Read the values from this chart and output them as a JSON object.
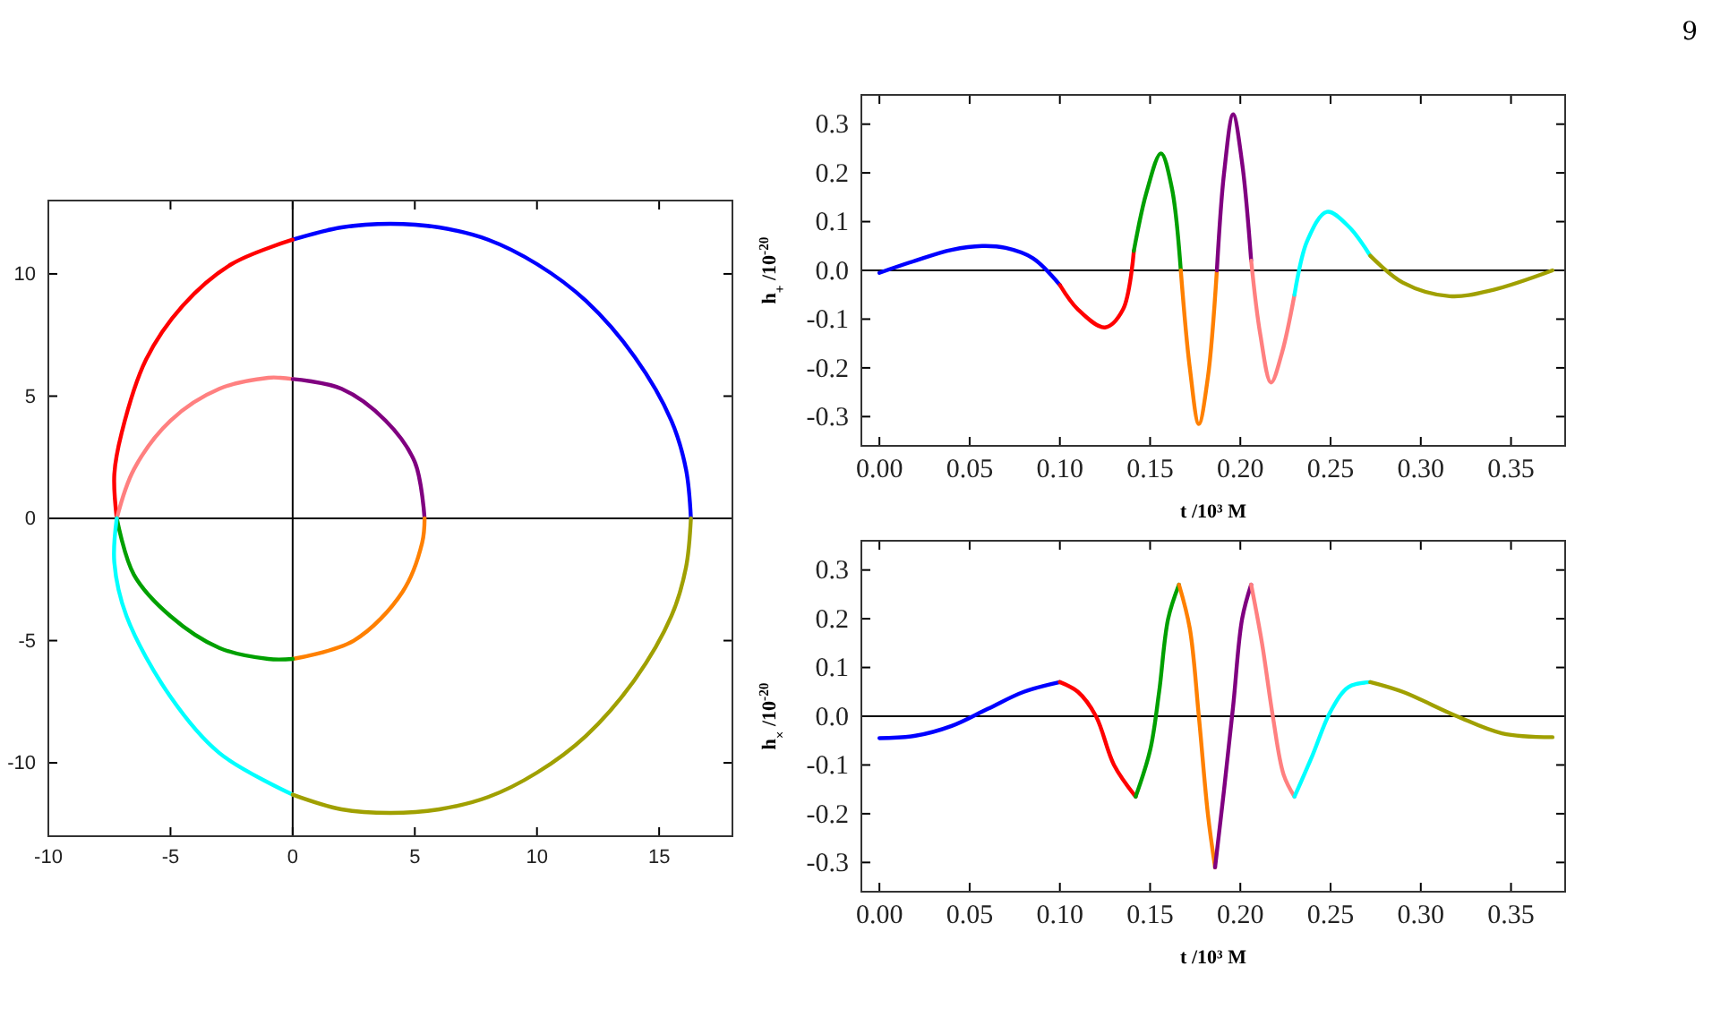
{
  "chart_data": [
    {
      "type": "line",
      "annotations": [
        "9"
      ],
      "xlim": [
        -10,
        18
      ],
      "ylim": [
        -13,
        13
      ],
      "xticks": [
        -10,
        -5,
        0,
        5,
        10,
        15
      ],
      "yticks": [
        -10,
        -5,
        0,
        5,
        10
      ],
      "grid": false,
      "ref_lines": [
        {
          "axis": "x",
          "value": 0,
          "color": "#000000"
        },
        {
          "axis": "y",
          "value": 0,
          "color": "#000000"
        }
      ],
      "series": [
        {
          "color": "#0000ff",
          "x": [
            0,
            2,
            4,
            6,
            8,
            10,
            12,
            14,
            15.5,
            16.1,
            16.3
          ],
          "values": [
            11.4,
            11.9,
            12.05,
            11.9,
            11.4,
            10.4,
            8.9,
            6.6,
            4.0,
            2.0,
            0
          ]
        },
        {
          "color": "#ff0000",
          "x": [
            -7.2,
            -7.3,
            -7.0,
            -6.0,
            -4.5,
            -2.5,
            0
          ],
          "values": [
            0,
            1.8,
            3.5,
            6.5,
            8.7,
            10.4,
            11.4
          ]
        },
        {
          "color": "#ff8080",
          "x": [
            -7.2,
            -6.5,
            -5,
            -3,
            -1,
            -0.5,
            0
          ],
          "values": [
            0,
            2,
            4,
            5.3,
            5.75,
            5.75,
            5.7
          ]
        },
        {
          "color": "#800080",
          "x": [
            0,
            2,
            3.8,
            5,
            5.4
          ],
          "values": [
            5.7,
            5.3,
            4.0,
            2.3,
            0
          ]
        },
        {
          "color": "#ff8000",
          "x": [
            5.4,
            5.3,
            4.5,
            2.5,
            0
          ],
          "values": [
            0,
            -1,
            -3,
            -5,
            -5.75
          ]
        },
        {
          "color": "#00a000",
          "x": [
            0,
            -1,
            -3,
            -5,
            -6.5,
            -7.2
          ],
          "values": [
            -5.75,
            -5.75,
            -5.3,
            -4,
            -2.3,
            0
          ]
        },
        {
          "color": "#00ffff",
          "x": [
            -7.2,
            -7.3,
            -6.8,
            -5,
            -3,
            0
          ],
          "values": [
            0,
            -1.8,
            -4,
            -7.3,
            -9.6,
            -11.3
          ]
        },
        {
          "color": "#a0a000",
          "x": [
            0,
            2,
            4,
            6,
            8,
            10,
            12,
            14,
            15.5,
            16.1,
            16.3
          ],
          "values": [
            -11.3,
            -11.9,
            -12.05,
            -11.9,
            -11.4,
            -10.4,
            -8.9,
            -6.6,
            -4,
            -2,
            0
          ]
        }
      ]
    },
    {
      "type": "line",
      "xlabel": "t /10³ M",
      "ylabel": "h$_{+}$ /10$^{-20}$",
      "xlim": [
        -0.01,
        0.38
      ],
      "ylim": [
        -0.36,
        0.36
      ],
      "xticks": [
        {
          "value": 0,
          "label": "0.00"
        },
        0.05,
        {
          "value": 0.1,
          "label": "0.10"
        },
        0.15,
        {
          "value": 0.2,
          "label": "0.20"
        },
        0.25,
        {
          "value": 0.3,
          "label": "0.30"
        },
        0.35
      ],
      "yticks": [
        -0.3,
        -0.2,
        -0.1,
        {
          "value": 0,
          "label": "0.0"
        },
        0.1,
        0.2,
        0.3
      ],
      "grid": false,
      "ref_lines": [
        {
          "axis": "y",
          "value": 0,
          "color": "#000000"
        }
      ],
      "series": [
        {
          "color": "#0000ff",
          "x": [
            0,
            0.02,
            0.04,
            0.057,
            0.07,
            0.085,
            0.1
          ],
          "values": [
            -0.005,
            0.02,
            0.042,
            0.05,
            0.046,
            0.025,
            -0.03
          ]
        },
        {
          "color": "#ff0000",
          "x": [
            0.1,
            0.11,
            0.125,
            0.135,
            0.141
          ],
          "values": [
            -0.03,
            -0.08,
            -0.117,
            -0.08,
            0.04
          ]
        },
        {
          "color": "#00a000",
          "x": [
            0.141,
            0.148,
            0.156,
            0.162,
            0.167
          ],
          "values": [
            0.04,
            0.16,
            0.24,
            0.17,
            0
          ]
        },
        {
          "color": "#ff8000",
          "x": [
            0.167,
            0.172,
            0.177,
            0.182,
            0.187
          ],
          "values": [
            0,
            -0.2,
            -0.315,
            -0.22,
            0
          ]
        },
        {
          "color": "#800080",
          "x": [
            0.187,
            0.191,
            0.196,
            0.201,
            0.206
          ],
          "values": [
            0,
            0.2,
            0.32,
            0.22,
            0.02
          ]
        },
        {
          "color": "#ff8080",
          "x": [
            0.206,
            0.211,
            0.217,
            0.223,
            0.23
          ],
          "values": [
            0.02,
            -0.13,
            -0.23,
            -0.17,
            -0.05
          ]
        },
        {
          "color": "#00ffff",
          "x": [
            0.23,
            0.237,
            0.248,
            0.26,
            0.272
          ],
          "values": [
            -0.05,
            0.06,
            0.12,
            0.09,
            0.03
          ]
        },
        {
          "color": "#a0a000",
          "x": [
            0.272,
            0.29,
            0.316,
            0.34,
            0.373
          ],
          "values": [
            0.03,
            -0.025,
            -0.053,
            -0.04,
            0
          ]
        }
      ]
    },
    {
      "type": "line",
      "xlabel": "t /10³ M",
      "ylabel": "h$_{×}$ /10$^{-20}$",
      "xlim": [
        -0.01,
        0.38
      ],
      "ylim": [
        -0.36,
        0.36
      ],
      "xticks": [
        {
          "value": 0,
          "label": "0.00"
        },
        0.05,
        {
          "value": 0.1,
          "label": "0.10"
        },
        0.15,
        {
          "value": 0.2,
          "label": "0.20"
        },
        0.25,
        {
          "value": 0.3,
          "label": "0.30"
        },
        0.35
      ],
      "yticks": [
        -0.3,
        -0.2,
        -0.1,
        {
          "value": 0,
          "label": "0.0"
        },
        0.1,
        0.2,
        0.3
      ],
      "grid": false,
      "ref_lines": [
        {
          "axis": "y",
          "value": 0,
          "color": "#000000"
        }
      ],
      "series": [
        {
          "color": "#0000ff",
          "x": [
            0,
            0.02,
            0.04,
            0.06,
            0.08,
            0.1
          ],
          "values": [
            -0.045,
            -0.04,
            -0.02,
            0.015,
            0.05,
            0.07
          ]
        },
        {
          "color": "#ff0000",
          "x": [
            0.1,
            0.11,
            0.12,
            0.13,
            0.142
          ],
          "values": [
            0.07,
            0.05,
            0,
            -0.1,
            -0.165
          ]
        },
        {
          "color": "#00a000",
          "x": [
            0.142,
            0.15,
            0.155,
            0.16,
            0.166
          ],
          "values": [
            -0.165,
            -0.07,
            0.05,
            0.2,
            0.27
          ]
        },
        {
          "color": "#ff8000",
          "x": [
            0.166,
            0.172,
            0.177,
            0.182,
            0.186
          ],
          "values": [
            0.27,
            0.18,
            0,
            -0.2,
            -0.31
          ]
        },
        {
          "color": "#800080",
          "x": [
            0.186,
            0.191,
            0.196,
            0.201,
            0.206
          ],
          "values": [
            -0.31,
            -0.15,
            0.02,
            0.2,
            0.27
          ]
        },
        {
          "color": "#ff8080",
          "x": [
            0.206,
            0.212,
            0.218,
            0.224,
            0.23
          ],
          "values": [
            0.27,
            0.15,
            0,
            -0.12,
            -0.165
          ]
        },
        {
          "color": "#00ffff",
          "x": [
            0.23,
            0.24,
            0.25,
            0.26,
            0.272
          ],
          "values": [
            -0.165,
            -0.08,
            0.01,
            0.06,
            0.07
          ]
        },
        {
          "color": "#a0a000",
          "x": [
            0.272,
            0.29,
            0.32,
            0.345,
            0.373
          ],
          "values": [
            0.07,
            0.05,
            0,
            -0.035,
            -0.043
          ]
        }
      ]
    }
  ]
}
